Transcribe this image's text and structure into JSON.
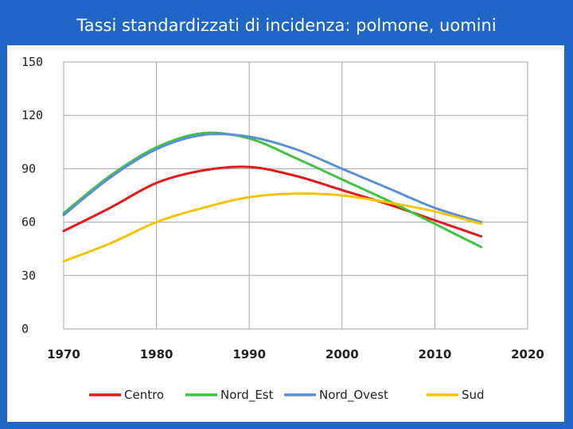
{
  "slide": {
    "title": "Tassi standardizzati di incidenza: polmone, uomini"
  },
  "chart_data": {
    "type": "line",
    "title": "Tassi standardizzati di incidenza: polmone, uomini",
    "xlabel": "",
    "ylabel": "",
    "xlim": [
      1970,
      2020
    ],
    "ylim": [
      0,
      150
    ],
    "xticks": [
      1970,
      1980,
      1990,
      2000,
      2010,
      2020
    ],
    "yticks": [
      0,
      30,
      60,
      90,
      120,
      150
    ],
    "grid": true,
    "legend": "bottom",
    "series": [
      {
        "name": "Centro",
        "color": "#e31a1c",
        "x": [
          1970,
          1975,
          1980,
          1985,
          1990,
          1995,
          2000,
          2005,
          2010,
          2015
        ],
        "y": [
          55,
          68,
          82,
          89,
          91,
          86,
          78,
          70,
          61,
          52
        ]
      },
      {
        "name": "Nord_Est",
        "color": "#3fc43f",
        "x": [
          1970,
          1975,
          1980,
          1985,
          1990,
          1995,
          2000,
          2005,
          2010,
          2015
        ],
        "y": [
          65,
          86,
          102,
          110,
          107,
          96,
          84,
          72,
          59,
          46
        ]
      },
      {
        "name": "Nord_Ovest",
        "color": "#5b8fd6",
        "x": [
          1970,
          1975,
          1980,
          1985,
          1990,
          1995,
          2000,
          2005,
          2010,
          2015
        ],
        "y": [
          64,
          85,
          101,
          109,
          108,
          101,
          90,
          79,
          68,
          60
        ]
      },
      {
        "name": "Sud",
        "color": "#f5c400",
        "x": [
          1970,
          1975,
          1980,
          1985,
          1990,
          1995,
          2000,
          2005,
          2010,
          2015
        ],
        "y": [
          38,
          48,
          60,
          68,
          74,
          76,
          75,
          71,
          66,
          59
        ]
      }
    ]
  }
}
